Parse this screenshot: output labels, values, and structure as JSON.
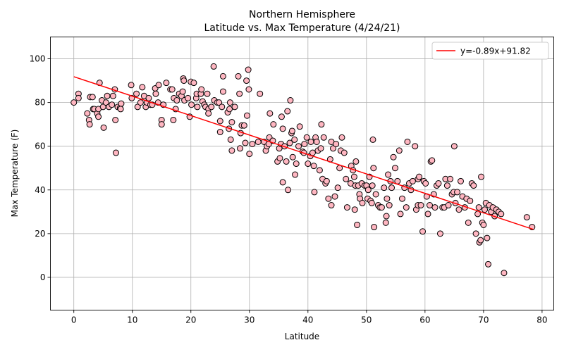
{
  "chart_data": {
    "type": "scatter",
    "title": "Northern Hemisphere",
    "subtitle": "Latitude vs. Max Temperature (4/24/21)",
    "xlabel": "Latitude",
    "ylabel": "Max Temperature (F)",
    "xlim": [
      -4,
      82
    ],
    "ylim": [
      -15,
      110
    ],
    "xticks": [
      0,
      10,
      20,
      30,
      40,
      50,
      60,
      70,
      80
    ],
    "yticks": [
      0,
      20,
      40,
      60,
      80,
      100
    ],
    "grid": true,
    "legend_position": "upper-right",
    "point_color": "#ffb6c1",
    "point_edge_color": "#000000",
    "regression": {
      "label": "y=-0.89x+91.82",
      "slope": -0.89,
      "intercept": 91.82,
      "x_range": [
        0,
        78.5
      ],
      "color": "#ff0000"
    },
    "points": [
      [
        0,
        80
      ],
      [
        0.8,
        84
      ],
      [
        0.8,
        82
      ],
      [
        2.3,
        75
      ],
      [
        2.6,
        72
      ],
      [
        2.7,
        70
      ],
      [
        2.8,
        82.5
      ],
      [
        3.2,
        82.5
      ],
      [
        3.3,
        77
      ],
      [
        3.5,
        77
      ],
      [
        4,
        75
      ],
      [
        4.2,
        77
      ],
      [
        4.2,
        73.5
      ],
      [
        4.4,
        89
      ],
      [
        4.8,
        81
      ],
      [
        5,
        78
      ],
      [
        5.1,
        68.5
      ],
      [
        5.5,
        80
      ],
      [
        5.7,
        83
      ],
      [
        6,
        78
      ],
      [
        6.5,
        79
      ],
      [
        6.7,
        83
      ],
      [
        7,
        86
      ],
      [
        7.1,
        72
      ],
      [
        7.2,
        57
      ],
      [
        7.5,
        78
      ],
      [
        7.9,
        77.5
      ],
      [
        8.1,
        79.5
      ],
      [
        8,
        77
      ],
      [
        9.8,
        88
      ],
      [
        9.9,
        82
      ],
      [
        10.7,
        84
      ],
      [
        10.9,
        78
      ],
      [
        11.4,
        80
      ],
      [
        11.7,
        87
      ],
      [
        12,
        83
      ],
      [
        12.3,
        78
      ],
      [
        12.5,
        80
      ],
      [
        12.8,
        82
      ],
      [
        13.1,
        79
      ],
      [
        13.4,
        79
      ],
      [
        13.9,
        86.5
      ],
      [
        14,
        84
      ],
      [
        14.4,
        80
      ],
      [
        14.5,
        88
      ],
      [
        15,
        72
      ],
      [
        15,
        70
      ],
      [
        15.3,
        79
      ],
      [
        15.8,
        89
      ],
      [
        16.5,
        86
      ],
      [
        16.8,
        86
      ],
      [
        17,
        72
      ],
      [
        17.1,
        82
      ],
      [
        17.4,
        77
      ],
      [
        17.6,
        81
      ],
      [
        18,
        84
      ],
      [
        18.4,
        83
      ],
      [
        18.6,
        85
      ],
      [
        18.7,
        91
      ],
      [
        18.8,
        90
      ],
      [
        18.9,
        81
      ],
      [
        19.5,
        82
      ],
      [
        19.8,
        73.5
      ],
      [
        20,
        89.5
      ],
      [
        20.1,
        79
      ],
      [
        20.5,
        89
      ],
      [
        20.9,
        82
      ],
      [
        21,
        84
      ],
      [
        21.1,
        78
      ],
      [
        21.7,
        84
      ],
      [
        21.8,
        86
      ],
      [
        22,
        80.5
      ],
      [
        22.3,
        79
      ],
      [
        22.5,
        78
      ],
      [
        22.8,
        84
      ],
      [
        23,
        77
      ],
      [
        23,
        75
      ],
      [
        23.5,
        78
      ],
      [
        23.9,
        96.5
      ],
      [
        24,
        81
      ],
      [
        24.5,
        80
      ],
      [
        24.8,
        80
      ],
      [
        25,
        71.5
      ],
      [
        25,
        66.5
      ],
      [
        25.3,
        78
      ],
      [
        25.5,
        92
      ],
      [
        25.5,
        85
      ],
      [
        26.3,
        75.5
      ],
      [
        26.5,
        68
      ],
      [
        26.6,
        77
      ],
      [
        26.7,
        80
      ],
      [
        26.8,
        63
      ],
      [
        27,
        71
      ],
      [
        27,
        58
      ],
      [
        27.5,
        78
      ],
      [
        28.1,
        92
      ],
      [
        28.3,
        84
      ],
      [
        28.4,
        59
      ],
      [
        28.5,
        66
      ],
      [
        28.7,
        69.5
      ],
      [
        29.1,
        69.5
      ],
      [
        29.3,
        61.5
      ],
      [
        29.5,
        90
      ],
      [
        29.6,
        74
      ],
      [
        29.8,
        95
      ],
      [
        29.9,
        86
      ],
      [
        30,
        56.5
      ],
      [
        30.5,
        61
      ],
      [
        31.5,
        62
      ],
      [
        31.8,
        84
      ],
      [
        32.5,
        62
      ],
      [
        32.8,
        58
      ],
      [
        33,
        60
      ],
      [
        33.3,
        61
      ],
      [
        33.4,
        64
      ],
      [
        33.5,
        75
      ],
      [
        34,
        62.5
      ],
      [
        34.1,
        70
      ],
      [
        34.8,
        53
      ],
      [
        35.1,
        59
      ],
      [
        35.2,
        54.5
      ],
      [
        35.4,
        61
      ],
      [
        35.5,
        73.5
      ],
      [
        35.7,
        68
      ],
      [
        35.7,
        43.5
      ],
      [
        36,
        60
      ],
      [
        36.3,
        53
      ],
      [
        36.5,
        76
      ],
      [
        36.6,
        40
      ],
      [
        36.9,
        61.5
      ],
      [
        37,
        81
      ],
      [
        37.2,
        66
      ],
      [
        37.3,
        67
      ],
      [
        37.4,
        55
      ],
      [
        37.7,
        63
      ],
      [
        37.8,
        47
      ],
      [
        38,
        52
      ],
      [
        38.4,
        60
      ],
      [
        38.6,
        69
      ],
      [
        39.1,
        57.5
      ],
      [
        39.3,
        57
      ],
      [
        39.4,
        61
      ],
      [
        39.8,
        64
      ],
      [
        40,
        52
      ],
      [
        40.4,
        55.5
      ],
      [
        40.5,
        62
      ],
      [
        40.8,
        57
      ],
      [
        41,
        51
      ],
      [
        41.1,
        39
      ],
      [
        41.3,
        64
      ],
      [
        41.5,
        62
      ],
      [
        41.7,
        58
      ],
      [
        42,
        49
      ],
      [
        42.2,
        59
      ],
      [
        42.3,
        70
      ],
      [
        42.5,
        45
      ],
      [
        42.7,
        64
      ],
      [
        43,
        43
      ],
      [
        43.2,
        44
      ],
      [
        43.5,
        36
      ],
      [
        43.8,
        54
      ],
      [
        44,
        33
      ],
      [
        44,
        62
      ],
      [
        44.3,
        59
      ],
      [
        44.6,
        37
      ],
      [
        44.8,
        61
      ],
      [
        45.1,
        41
      ],
      [
        45.4,
        50
      ],
      [
        45.6,
        58
      ],
      [
        45.8,
        64
      ],
      [
        46.2,
        57
      ],
      [
        46.5,
        45
      ],
      [
        46.7,
        32
      ],
      [
        47.3,
        43
      ],
      [
        47.4,
        51
      ],
      [
        47.7,
        49
      ],
      [
        47.9,
        46
      ],
      [
        48,
        31
      ],
      [
        48.1,
        42
      ],
      [
        48.2,
        53
      ],
      [
        48.4,
        24
      ],
      [
        48.6,
        42
      ],
      [
        48.8,
        38
      ],
      [
        48.9,
        36
      ],
      [
        49.2,
        43
      ],
      [
        49.3,
        34
      ],
      [
        49.7,
        42
      ],
      [
        50,
        42
      ],
      [
        50.2,
        36
      ],
      [
        50.3,
        40
      ],
      [
        50.5,
        46
      ],
      [
        50.7,
        35
      ],
      [
        50.9,
        34
      ],
      [
        51,
        42
      ],
      [
        51.1,
        63
      ],
      [
        51.2,
        50
      ],
      [
        51.3,
        23
      ],
      [
        51.6,
        38
      ],
      [
        52,
        33
      ],
      [
        52.3,
        32
      ],
      [
        52.6,
        32
      ],
      [
        53,
        41
      ],
      [
        53.3,
        25
      ],
      [
        53.4,
        28
      ],
      [
        53.5,
        36
      ],
      [
        53.7,
        47
      ],
      [
        53.9,
        33
      ],
      [
        54.1,
        44
      ],
      [
        54.3,
        41
      ],
      [
        54.6,
        55
      ],
      [
        54.9,
        50
      ],
      [
        55.3,
        44
      ],
      [
        55.6,
        58
      ],
      [
        55.8,
        29
      ],
      [
        56.1,
        36
      ],
      [
        56.5,
        41
      ],
      [
        56.8,
        32
      ],
      [
        57,
        62
      ],
      [
        57.3,
        43
      ],
      [
        57.6,
        40
      ],
      [
        57.9,
        44
      ],
      [
        58.3,
        60
      ],
      [
        58.5,
        31
      ],
      [
        58.8,
        33
      ],
      [
        58.8,
        45
      ],
      [
        59,
        46
      ],
      [
        59.3,
        33
      ],
      [
        59.6,
        21
      ],
      [
        59.8,
        44
      ],
      [
        60.1,
        43
      ],
      [
        60.3,
        37
      ],
      [
        60.5,
        29
      ],
      [
        60.8,
        33
      ],
      [
        61,
        53
      ],
      [
        61.2,
        53.5
      ],
      [
        61.5,
        38
      ],
      [
        61.7,
        32
      ],
      [
        62,
        42
      ],
      [
        62.3,
        43
      ],
      [
        62.6,
        20
      ],
      [
        63,
        32
      ],
      [
        63.3,
        32
      ],
      [
        63.5,
        45
      ],
      [
        63.8,
        42
      ],
      [
        64,
        33
      ],
      [
        64.3,
        45
      ],
      [
        64.6,
        38
      ],
      [
        64.9,
        39
      ],
      [
        65,
        60
      ],
      [
        65.2,
        34
      ],
      [
        65.5,
        39
      ],
      [
        65.8,
        31
      ],
      [
        66.1,
        44
      ],
      [
        66.4,
        37
      ],
      [
        66.8,
        32
      ],
      [
        67.1,
        36
      ],
      [
        67.4,
        25
      ],
      [
        67.7,
        35
      ],
      [
        68,
        43
      ],
      [
        68.3,
        42
      ],
      [
        68.7,
        20
      ],
      [
        69,
        29
      ],
      [
        69.2,
        32
      ],
      [
        69.3,
        16
      ],
      [
        69.5,
        17
      ],
      [
        69.6,
        46
      ],
      [
        69.8,
        25
      ],
      [
        70,
        24
      ],
      [
        70.2,
        31
      ],
      [
        70.4,
        34
      ],
      [
        70.6,
        18
      ],
      [
        70.8,
        6
      ],
      [
        71,
        33
      ],
      [
        71.3,
        30
      ],
      [
        71.6,
        32
      ],
      [
        71.9,
        28
      ],
      [
        72.2,
        31
      ],
      [
        72.6,
        30
      ],
      [
        73,
        29
      ],
      [
        73.5,
        2
      ],
      [
        77.4,
        27.5
      ],
      [
        78.3,
        23
      ]
    ]
  }
}
